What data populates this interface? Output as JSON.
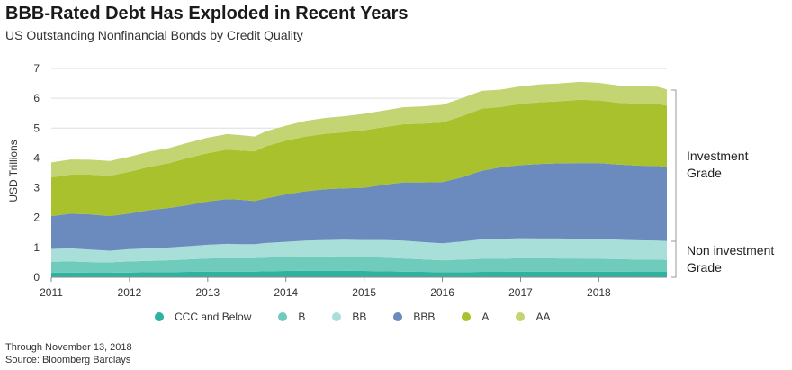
{
  "header": {
    "title": "BBB-Rated Debt Has Exploded in Recent Years",
    "subtitle": "US Outstanding Nonfinancial Bonds by Credit Quality"
  },
  "brackets": {
    "investment": "Investment Grade",
    "investment_line1": "Investment",
    "investment_line2": "Grade",
    "noninvestment_line1": "Non investment",
    "noninvestment_line2": "Grade"
  },
  "footnotes": {
    "through": "Through November 13, 2018",
    "source": "Source: Bloomberg Barclays"
  },
  "colors": {
    "CCC and Below": "#2fb3a1",
    "B": "#6fcbbb",
    "BB": "#a9dfd9",
    "BBB": "#6b8abd",
    "A": "#a8c12c",
    "AA": "#c3d472",
    "grid": "#dddddd",
    "bracket": "#999999"
  },
  "chart_data": {
    "type": "area",
    "stacked": true,
    "title": "BBB-Rated Debt Has Exploded in Recent Years",
    "subtitle": "US Outstanding Nonfinancial Bonds by Credit Quality",
    "xlabel": "",
    "ylabel": "USD Trillions",
    "xlim": [
      2011.0,
      2018.87
    ],
    "ylim": [
      0,
      7
    ],
    "yticks": [
      0,
      1,
      2,
      3,
      4,
      5,
      6,
      7
    ],
    "xticks": [
      "2011",
      "2012",
      "2013",
      "2014",
      "2015",
      "2016",
      "2017",
      "2018"
    ],
    "grid": true,
    "legend": "bottom",
    "x": [
      2011.0,
      2011.25,
      2011.5,
      2011.75,
      2012.0,
      2012.25,
      2012.5,
      2012.75,
      2013.0,
      2013.25,
      2013.4,
      2013.6,
      2013.75,
      2014.0,
      2014.25,
      2014.5,
      2014.75,
      2015.0,
      2015.25,
      2015.5,
      2015.75,
      2016.0,
      2016.25,
      2016.5,
      2016.75,
      2017.0,
      2017.25,
      2017.5,
      2017.75,
      2018.0,
      2018.25,
      2018.5,
      2018.75,
      2018.87
    ],
    "series": [
      {
        "name": "CCC and Below",
        "values": [
          0.16,
          0.16,
          0.15,
          0.15,
          0.16,
          0.17,
          0.17,
          0.18,
          0.19,
          0.19,
          0.19,
          0.19,
          0.2,
          0.21,
          0.22,
          0.22,
          0.22,
          0.21,
          0.2,
          0.19,
          0.18,
          0.17,
          0.17,
          0.18,
          0.18,
          0.19,
          0.19,
          0.19,
          0.19,
          0.19,
          0.19,
          0.18,
          0.18,
          0.18
        ]
      },
      {
        "name": "B",
        "values": [
          0.36,
          0.37,
          0.36,
          0.35,
          0.37,
          0.38,
          0.4,
          0.42,
          0.44,
          0.45,
          0.45,
          0.45,
          0.46,
          0.47,
          0.48,
          0.48,
          0.47,
          0.46,
          0.46,
          0.44,
          0.42,
          0.4,
          0.42,
          0.44,
          0.44,
          0.45,
          0.45,
          0.44,
          0.44,
          0.43,
          0.42,
          0.41,
          0.41,
          0.4
        ]
      },
      {
        "name": "BB",
        "values": [
          0.43,
          0.44,
          0.42,
          0.39,
          0.41,
          0.42,
          0.43,
          0.44,
          0.46,
          0.48,
          0.47,
          0.47,
          0.49,
          0.51,
          0.53,
          0.55,
          0.57,
          0.58,
          0.59,
          0.6,
          0.58,
          0.57,
          0.61,
          0.65,
          0.67,
          0.67,
          0.66,
          0.67,
          0.66,
          0.66,
          0.65,
          0.65,
          0.64,
          0.64
        ]
      },
      {
        "name": "BBB",
        "values": [
          1.1,
          1.16,
          1.18,
          1.16,
          1.2,
          1.28,
          1.32,
          1.38,
          1.45,
          1.5,
          1.49,
          1.45,
          1.5,
          1.59,
          1.65,
          1.7,
          1.72,
          1.75,
          1.85,
          1.95,
          2.0,
          2.05,
          2.15,
          2.3,
          2.4,
          2.45,
          2.5,
          2.52,
          2.54,
          2.55,
          2.52,
          2.5,
          2.5,
          2.48
        ]
      },
      {
        "name": "A",
        "values": [
          1.3,
          1.31,
          1.33,
          1.35,
          1.4,
          1.45,
          1.5,
          1.58,
          1.62,
          1.66,
          1.65,
          1.66,
          1.75,
          1.8,
          1.84,
          1.86,
          1.88,
          1.93,
          1.93,
          1.95,
          1.97,
          2.0,
          2.05,
          2.08,
          2.02,
          2.05,
          2.07,
          2.08,
          2.12,
          2.1,
          2.07,
          2.08,
          2.08,
          2.05
        ]
      },
      {
        "name": "AA",
        "values": [
          0.5,
          0.51,
          0.5,
          0.5,
          0.5,
          0.51,
          0.51,
          0.51,
          0.52,
          0.52,
          0.52,
          0.5,
          0.5,
          0.5,
          0.52,
          0.53,
          0.54,
          0.55,
          0.56,
          0.57,
          0.58,
          0.59,
          0.6,
          0.6,
          0.58,
          0.59,
          0.6,
          0.6,
          0.6,
          0.59,
          0.58,
          0.58,
          0.58,
          0.55
        ]
      }
    ]
  }
}
